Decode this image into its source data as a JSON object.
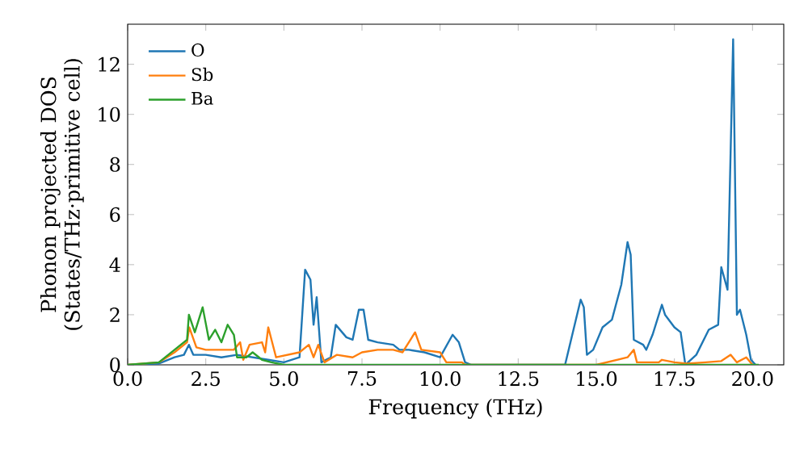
{
  "chart_data": {
    "type": "line",
    "xlabel": "Frequency (THz)",
    "ylabel": "Phonon projected DOS (States/THz·primitive cell)",
    "xlim": [
      0,
      21
    ],
    "ylim": [
      0,
      13.6
    ],
    "xticks": [
      {
        "value": 0,
        "label": "0.0"
      },
      {
        "value": 2.5,
        "label": "2.5"
      },
      {
        "value": 5,
        "label": "5.0"
      },
      {
        "value": 7.5,
        "label": "7.5"
      },
      {
        "value": 10,
        "label": "10.0"
      },
      {
        "value": 12.5,
        "label": "12.5"
      },
      {
        "value": 15,
        "label": "15.0"
      },
      {
        "value": 17.5,
        "label": "17.5"
      },
      {
        "value": 20,
        "label": "20.0"
      }
    ],
    "yticks": [
      0,
      2,
      4,
      6,
      8,
      10,
      12
    ],
    "legend": "top left",
    "marker": "none",
    "line_style": "solid",
    "grid": false,
    "series": [
      {
        "name": "O",
        "color": "#1f77b4",
        "x": [
          0,
          1,
          1.5,
          1.8,
          1.96,
          2.1,
          2.5,
          3.0,
          3.5,
          4.0,
          4.5,
          5.0,
          5.5,
          5.68,
          5.85,
          5.95,
          6.05,
          6.2,
          6.5,
          6.66,
          7.0,
          7.2,
          7.4,
          7.55,
          7.7,
          8.0,
          8.5,
          8.7,
          9.0,
          9.5,
          10.0,
          10.4,
          10.6,
          10.8,
          11.0,
          14.0,
          14.5,
          14.6,
          14.7,
          14.9,
          15.2,
          15.5,
          15.8,
          16.0,
          16.1,
          16.2,
          16.5,
          16.6,
          16.8,
          17.1,
          17.2,
          17.5,
          17.7,
          17.85,
          18.2,
          18.6,
          18.9,
          19.0,
          19.2,
          19.38,
          19.5,
          19.6,
          19.8,
          19.95,
          20.1
        ],
        "values": [
          0,
          0.05,
          0.3,
          0.4,
          0.8,
          0.4,
          0.4,
          0.3,
          0.4,
          0.3,
          0.2,
          0.1,
          0.3,
          3.8,
          3.4,
          1.6,
          2.7,
          0.1,
          0.3,
          1.6,
          1.1,
          1.0,
          2.2,
          2.2,
          1.0,
          0.9,
          0.8,
          0.6,
          0.6,
          0.5,
          0.3,
          1.2,
          0.9,
          0.1,
          0,
          0,
          2.6,
          2.3,
          0.4,
          0.6,
          1.5,
          1.8,
          3.2,
          4.9,
          4.4,
          1.0,
          0.8,
          0.6,
          1.2,
          2.4,
          2.0,
          1.5,
          1.3,
          0,
          0.4,
          1.4,
          1.6,
          3.9,
          3.0,
          13.0,
          2.0,
          2.2,
          1.2,
          0.2,
          0
        ]
      },
      {
        "name": "Sb",
        "color": "#ff7f0e",
        "x": [
          0,
          1,
          1.5,
          1.9,
          1.97,
          2.2,
          2.5,
          3.0,
          3.4,
          3.6,
          3.7,
          3.9,
          4.3,
          4.4,
          4.5,
          4.75,
          5.5,
          5.8,
          5.95,
          6.1,
          6.3,
          6.7,
          7.2,
          7.5,
          8.0,
          8.5,
          8.8,
          9.2,
          9.4,
          10.0,
          10.2,
          10.7,
          10.8,
          15.0,
          15.5,
          16.0,
          16.2,
          16.3,
          17.0,
          17.1,
          17.5,
          17.9,
          18.5,
          19.0,
          19.3,
          19.5,
          19.8,
          20.0
        ],
        "values": [
          0,
          0.1,
          0.5,
          0.9,
          1.5,
          0.7,
          0.6,
          0.6,
          0.6,
          0.9,
          0.2,
          0.8,
          0.9,
          0.5,
          1.5,
          0.3,
          0.5,
          0.8,
          0.3,
          0.8,
          0.1,
          0.4,
          0.3,
          0.5,
          0.6,
          0.6,
          0.5,
          1.3,
          0.6,
          0.5,
          0.1,
          0.1,
          0,
          0,
          0.15,
          0.3,
          0.6,
          0.1,
          0.1,
          0.2,
          0.1,
          0.05,
          0.1,
          0.15,
          0.4,
          0.1,
          0.3,
          0
        ]
      },
      {
        "name": "Ba",
        "color": "#2ca02c",
        "x": [
          0,
          1,
          1.5,
          1.9,
          1.96,
          2.15,
          2.4,
          2.6,
          2.8,
          3.0,
          3.2,
          3.4,
          3.5,
          3.8,
          4.0,
          4.3,
          4.6,
          5.0,
          20.2
        ],
        "values": [
          0,
          0.1,
          0.6,
          1.0,
          2.0,
          1.3,
          2.3,
          1.0,
          1.4,
          0.9,
          1.6,
          1.2,
          0.3,
          0.3,
          0.5,
          0.2,
          0.1,
          0,
          0
        ]
      }
    ]
  }
}
